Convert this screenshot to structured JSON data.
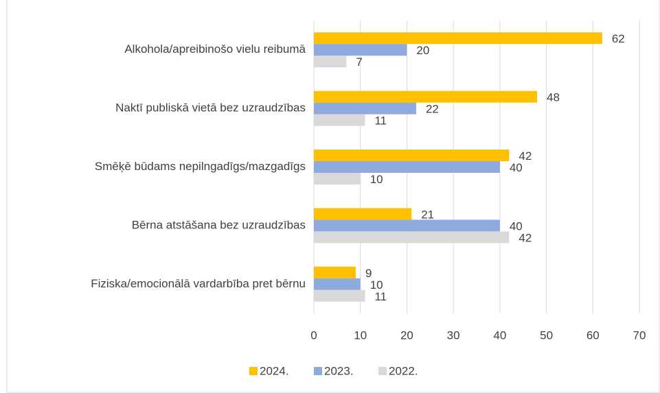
{
  "chart_data": {
    "type": "bar",
    "orientation": "horizontal",
    "categories": [
      "Alkohola/apreibinošo vielu reibumā",
      "Naktī publiskā vietā bez uzraudzības",
      "Smēķē būdams nepilngadīgs/mazgadīgs",
      "Bērna atstāšana bez uzraudzības",
      "Fiziska/emocionālā vardarbība pret bērnu"
    ],
    "series": [
      {
        "name": "2024.",
        "color": "#ffc000",
        "values": [
          62,
          48,
          42,
          21,
          9
        ]
      },
      {
        "name": "2023.",
        "color": "#8faadc",
        "values": [
          20,
          22,
          40,
          40,
          10
        ]
      },
      {
        "name": "2022.",
        "color": "#d9d9d9",
        "values": [
          7,
          11,
          10,
          42,
          11
        ]
      }
    ],
    "xlim": [
      0,
      70
    ],
    "xticks": [
      0,
      10,
      20,
      30,
      40,
      50,
      60,
      70
    ],
    "grid": true,
    "legend": "bottom"
  }
}
